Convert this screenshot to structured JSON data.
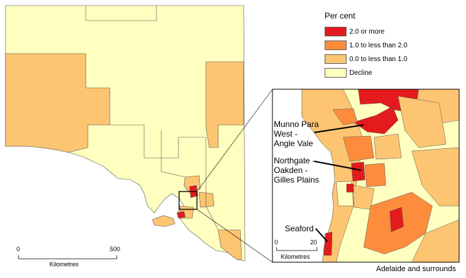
{
  "legend": {
    "title": "Per cent",
    "items": [
      {
        "label": "2.0 or more",
        "color": "#e41a1c"
      },
      {
        "label": "1.0 to less than 2.0",
        "color": "#fd8d3c"
      },
      {
        "label": "0.0 to less than 1.0",
        "color": "#fdc572"
      },
      {
        "label": "Decline",
        "color": "#ffffc0"
      }
    ]
  },
  "labels": {
    "munno_line1": "Munno Para",
    "munno_line2": "West -",
    "munno_line3": "Angle Vale",
    "northgate_line1": "Northgate -",
    "northgate_line2": "Oakden -",
    "northgate_line3": "Gilles Plains",
    "seaford": "Seaford",
    "inset_caption": "Adelaide and surrounds"
  },
  "scalebar_main": {
    "start": "0",
    "end": "500",
    "unit": "Kilometres"
  },
  "scalebar_inset": {
    "start": "0",
    "end": "20",
    "unit": "Kilometres"
  }
}
